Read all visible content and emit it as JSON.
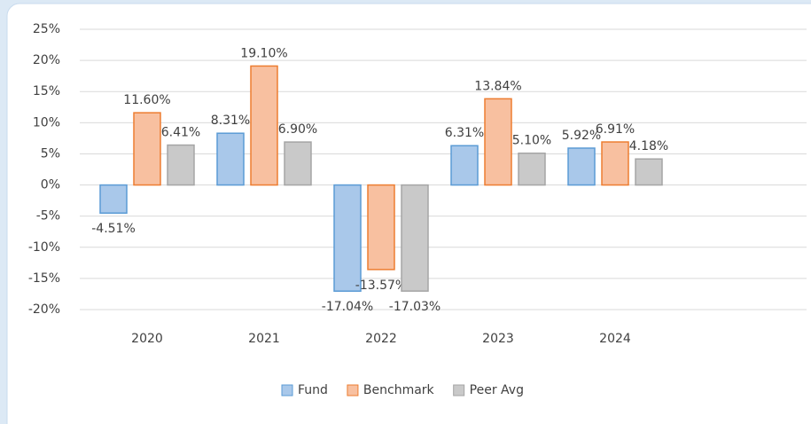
{
  "chart_data": {
    "type": "bar",
    "categories": [
      "2020",
      "2021",
      "2022",
      "2023",
      "2024"
    ],
    "series": [
      {
        "name": "Fund",
        "color": "#a9c8ea",
        "edge_color": "#5b9bd5",
        "values": [
          -4.51,
          8.31,
          -17.04,
          6.31,
          5.92
        ],
        "value_labels": [
          "-4.51%",
          "8.31%",
          "-17.04%",
          "6.31%",
          "5.92%"
        ]
      },
      {
        "name": "Benchmark",
        "color": "#f8c0a0",
        "edge_color": "#ed7d31",
        "values": [
          11.6,
          19.1,
          -13.57,
          13.84,
          6.91
        ],
        "value_labels": [
          "11.60%",
          "19.10%",
          "-13.57%",
          "13.84%",
          "6.91%"
        ]
      },
      {
        "name": "Peer Avg",
        "color": "#c9c9c9",
        "edge_color": "#a5a5a5",
        "values": [
          6.41,
          6.9,
          -17.03,
          5.1,
          4.18
        ],
        "value_labels": [
          "6.41%",
          "6.90%",
          "-17.03%",
          "5.10%",
          "4.18%"
        ]
      }
    ],
    "ylim": [
      -20,
      25
    ],
    "yticks": [
      {
        "value": -20,
        "label": "-20%"
      },
      {
        "value": -15,
        "label": "-15%"
      },
      {
        "value": -10,
        "label": "-10%"
      },
      {
        "value": -5,
        "label": "-5%"
      },
      {
        "value": 0,
        "label": "0%"
      },
      {
        "value": 5,
        "label": "5%"
      },
      {
        "value": 10,
        "label": "10%"
      },
      {
        "value": 15,
        "label": "15%"
      },
      {
        "value": 20,
        "label": "20%"
      },
      {
        "value": 25,
        "label": "25%"
      }
    ],
    "grid": true,
    "legend": "bottom"
  }
}
